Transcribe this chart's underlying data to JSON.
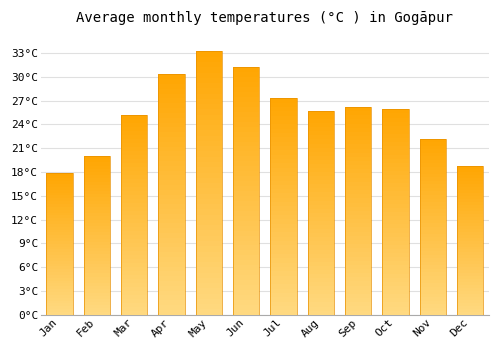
{
  "title": "Average monthly temperatures (°C ) in Gogāpur",
  "months": [
    "Jan",
    "Feb",
    "Mar",
    "Apr",
    "May",
    "Jun",
    "Jul",
    "Aug",
    "Sep",
    "Oct",
    "Nov",
    "Dec"
  ],
  "temperatures": [
    17.9,
    20.0,
    25.2,
    30.3,
    33.2,
    31.2,
    27.3,
    25.7,
    26.2,
    25.9,
    22.2,
    18.7
  ],
  "bar_color": "#FFA500",
  "bar_color_light": "#FFD980",
  "bar_edge_color": "#E89000",
  "background_color": "#ffffff",
  "grid_color": "#e0e0e0",
  "yticks": [
    0,
    3,
    6,
    9,
    12,
    15,
    18,
    21,
    24,
    27,
    30,
    33
  ],
  "ylim": [
    0,
    35.5
  ],
  "title_fontsize": 10,
  "tick_fontsize": 8,
  "font_family": "monospace"
}
